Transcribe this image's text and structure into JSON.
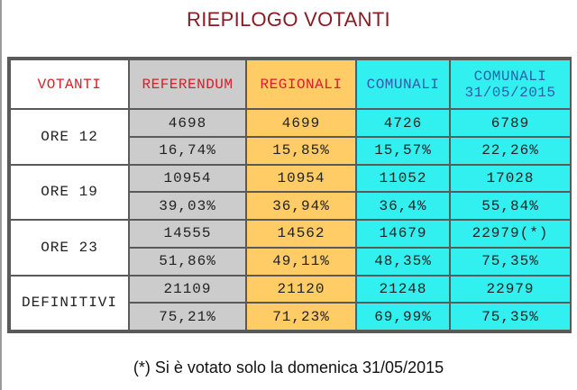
{
  "title": "RIEPILOGO VOTANTI",
  "table": {
    "headers": {
      "votanti": "VOTANTI",
      "referendum": "REFERENDUM",
      "regionali": "REGIONALI",
      "comunali": "COMUNALI",
      "comunali_2015_line1": "COMUNALI",
      "comunali_2015_line2": "31/05/2015"
    },
    "rows": [
      {
        "label": "ORE 12",
        "counts": [
          "4698",
          "4699",
          "4726",
          "6789"
        ],
        "percents": [
          "16,74%",
          "15,85%",
          "15,57%",
          "22,26%"
        ]
      },
      {
        "label": "ORE 19",
        "counts": [
          "10954",
          "10954",
          "11052",
          "17028"
        ],
        "percents": [
          "39,03%",
          "36,94%",
          "36,4%",
          "55,84%"
        ]
      },
      {
        "label": "ORE 23",
        "counts": [
          "14555",
          "14562",
          "14679",
          "22979(*)"
        ],
        "percents": [
          "51,86%",
          "49,11%",
          "48,35%",
          "75,35%"
        ]
      },
      {
        "label": "DEFINITIVI",
        "counts": [
          "21109",
          "21120",
          "21248",
          "22979"
        ],
        "percents": [
          "75,21%",
          "71,23%",
          "69,99%",
          "75,35%"
        ]
      }
    ]
  },
  "footnote": "(*) Si è votato solo la domenica 31/05/2015",
  "colors": {
    "title": "#8b1a22",
    "header_text": "#d6202a",
    "header_text_comunali": "#2b5ea8",
    "referendum_bg": "#cccccc",
    "regionali_bg": "#ffcc66",
    "comunali_bg": "#33f0f0",
    "border": "#5a5a5a"
  }
}
